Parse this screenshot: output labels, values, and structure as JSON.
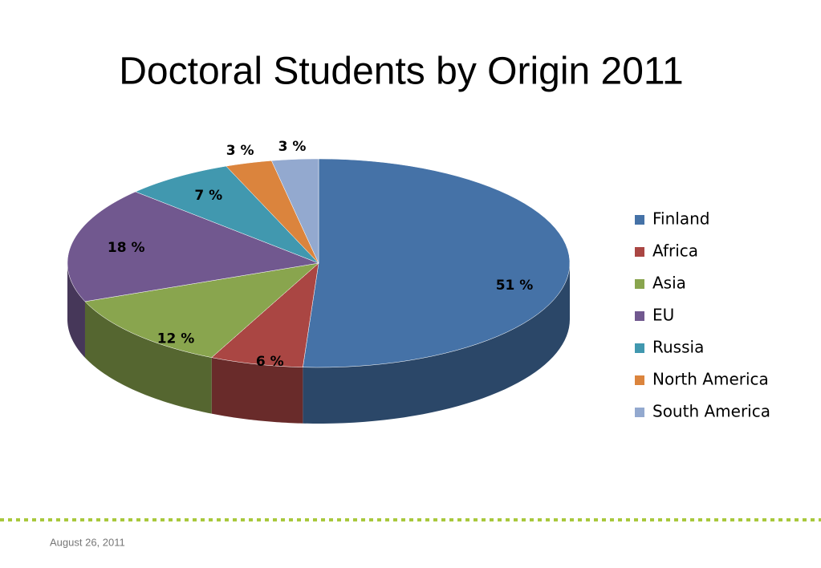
{
  "chart_data": {
    "type": "pie",
    "title": "Doctoral Students by Origin 2011",
    "categories": [
      "Finland",
      "Africa",
      "Asia",
      "EU",
      "Russia",
      "North America",
      "South America"
    ],
    "values": [
      51,
      6,
      12,
      18,
      7,
      3,
      3
    ],
    "value_labels": [
      "51 %",
      "6 %",
      "12 %",
      "18 %",
      "7 %",
      "3 %",
      "3 %"
    ],
    "colors": [
      "#4572a7",
      "#aa4643",
      "#89a54e",
      "#71588f",
      "#4198af",
      "#db843d",
      "#93a9cf"
    ],
    "legend": "right"
  },
  "footer": {
    "date": "August 26, 2011"
  }
}
